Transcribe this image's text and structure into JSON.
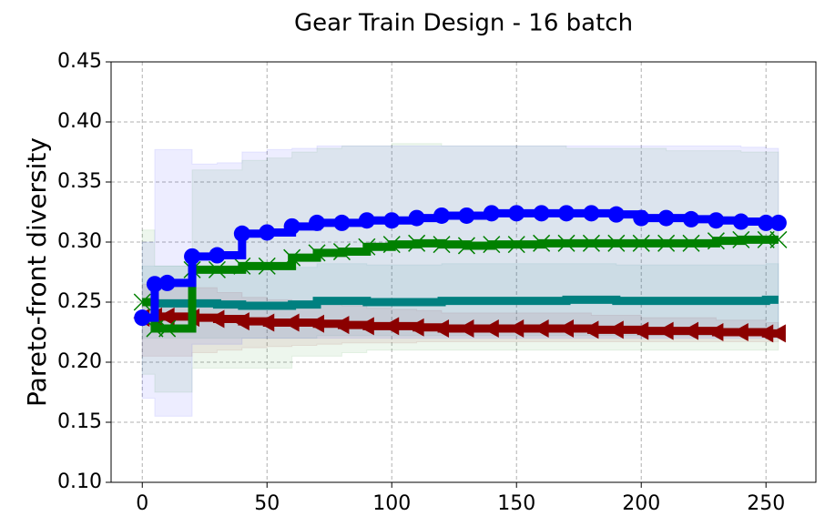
{
  "chart_data": {
    "type": "line",
    "title": "Gear Train Design - 16 batch",
    "y_label": "Pareto-front diversity",
    "x": [
      0,
      5,
      10,
      20,
      30,
      40,
      50,
      60,
      70,
      80,
      90,
      100,
      110,
      120,
      130,
      140,
      150,
      160,
      170,
      180,
      190,
      200,
      210,
      220,
      230,
      240,
      250,
      255
    ],
    "xlim": [
      -12.5,
      270
    ],
    "xticks": [
      0,
      50,
      100,
      150,
      200,
      250
    ],
    "ylim": [
      0.1,
      0.45
    ],
    "yticks": [
      {
        "value": 0.1,
        "label": "0.10"
      },
      0.15,
      {
        "value": 0.2,
        "label": "0.20"
      },
      0.25,
      {
        "value": 0.3,
        "label": "0.30"
      },
      0.35,
      {
        "value": 0.4,
        "label": "0.40"
      },
      0.45
    ],
    "grid": true,
    "step": true,
    "series": [
      {
        "color": "#008080",
        "marker": "none",
        "values": [
          0.25,
          0.249,
          0.249,
          0.249,
          0.248,
          0.247,
          0.247,
          0.248,
          0.251,
          0.251,
          0.25,
          0.25,
          0.25,
          0.251,
          0.251,
          0.251,
          0.251,
          0.251,
          0.252,
          0.252,
          0.251,
          0.251,
          0.251,
          0.251,
          0.251,
          0.251,
          0.252,
          0.252
        ],
        "lower": [
          0.22,
          0.22,
          0.22,
          0.22,
          0.22,
          0.22,
          0.22,
          0.22,
          0.222,
          0.222,
          0.222,
          0.222,
          0.222,
          0.222,
          0.222,
          0.222,
          0.222,
          0.222,
          0.222,
          0.222,
          0.222,
          0.222,
          0.222,
          0.222,
          0.222,
          0.222,
          0.222,
          0.222
        ],
        "upper": [
          0.28,
          0.28,
          0.28,
          0.28,
          0.278,
          0.278,
          0.278,
          0.279,
          0.282,
          0.282,
          0.281,
          0.281,
          0.281,
          0.282,
          0.282,
          0.282,
          0.282,
          0.282,
          0.282,
          0.282,
          0.281,
          0.281,
          0.281,
          0.281,
          0.281,
          0.281,
          0.282,
          0.282
        ]
      },
      {
        "color": "#8b0000",
        "marker": "triangle-left",
        "values": [
          0.237,
          0.238,
          0.238,
          0.237,
          0.236,
          0.234,
          0.233,
          0.233,
          0.232,
          0.231,
          0.23,
          0.23,
          0.229,
          0.228,
          0.228,
          0.228,
          0.228,
          0.228,
          0.228,
          0.227,
          0.227,
          0.226,
          0.226,
          0.226,
          0.225,
          0.225,
          0.224,
          0.224
        ],
        "lower": [
          0.205,
          0.205,
          0.205,
          0.208,
          0.21,
          0.212,
          0.213,
          0.214,
          0.215,
          0.216,
          0.216,
          0.216,
          0.217,
          0.217,
          0.217,
          0.217,
          0.217,
          0.217,
          0.217,
          0.217,
          0.217,
          0.217,
          0.217,
          0.217,
          0.217,
          0.217,
          0.217,
          0.217
        ],
        "upper": [
          0.265,
          0.265,
          0.265,
          0.262,
          0.258,
          0.254,
          0.252,
          0.251,
          0.249,
          0.247,
          0.245,
          0.244,
          0.243,
          0.241,
          0.241,
          0.241,
          0.241,
          0.241,
          0.241,
          0.239,
          0.239,
          0.237,
          0.237,
          0.237,
          0.235,
          0.235,
          0.233,
          0.233
        ]
      },
      {
        "color": "#008000",
        "marker": "x",
        "values": [
          0.25,
          0.228,
          0.228,
          0.277,
          0.277,
          0.28,
          0.28,
          0.287,
          0.291,
          0.292,
          0.296,
          0.298,
          0.299,
          0.298,
          0.297,
          0.298,
          0.298,
          0.299,
          0.299,
          0.299,
          0.299,
          0.299,
          0.299,
          0.299,
          0.301,
          0.302,
          0.302,
          0.302
        ],
        "lower": [
          0.19,
          0.175,
          0.175,
          0.195,
          0.195,
          0.195,
          0.195,
          0.205,
          0.205,
          0.208,
          0.21,
          0.21,
          0.21,
          0.21,
          0.21,
          0.21,
          0.21,
          0.21,
          0.21,
          0.21,
          0.21,
          0.21,
          0.21,
          0.21,
          0.21,
          0.21,
          0.21,
          0.21
        ],
        "upper": [
          0.31,
          0.28,
          0.28,
          0.36,
          0.36,
          0.368,
          0.37,
          0.375,
          0.378,
          0.38,
          0.38,
          0.382,
          0.382,
          0.38,
          0.38,
          0.38,
          0.38,
          0.38,
          0.378,
          0.378,
          0.378,
          0.378,
          0.376,
          0.376,
          0.376,
          0.375,
          0.375,
          0.375
        ]
      },
      {
        "color": "#0000ff",
        "marker": "circle",
        "values": [
          0.237,
          0.265,
          0.266,
          0.288,
          0.289,
          0.307,
          0.308,
          0.313,
          0.316,
          0.316,
          0.318,
          0.318,
          0.32,
          0.322,
          0.322,
          0.324,
          0.324,
          0.324,
          0.324,
          0.324,
          0.323,
          0.32,
          0.32,
          0.319,
          0.318,
          0.317,
          0.316,
          0.316
        ],
        "lower": [
          0.17,
          0.155,
          0.155,
          0.215,
          0.215,
          0.22,
          0.22,
          0.22,
          0.22,
          0.22,
          0.22,
          0.22,
          0.22,
          0.22,
          0.22,
          0.22,
          0.22,
          0.22,
          0.22,
          0.22,
          0.22,
          0.22,
          0.22,
          0.22,
          0.22,
          0.22,
          0.22,
          0.22
        ],
        "upper": [
          0.3,
          0.377,
          0.377,
          0.365,
          0.366,
          0.375,
          0.377,
          0.378,
          0.38,
          0.38,
          0.38,
          0.38,
          0.38,
          0.38,
          0.38,
          0.38,
          0.38,
          0.38,
          0.38,
          0.38,
          0.38,
          0.38,
          0.38,
          0.38,
          0.38,
          0.379,
          0.378,
          0.378
        ]
      }
    ]
  }
}
